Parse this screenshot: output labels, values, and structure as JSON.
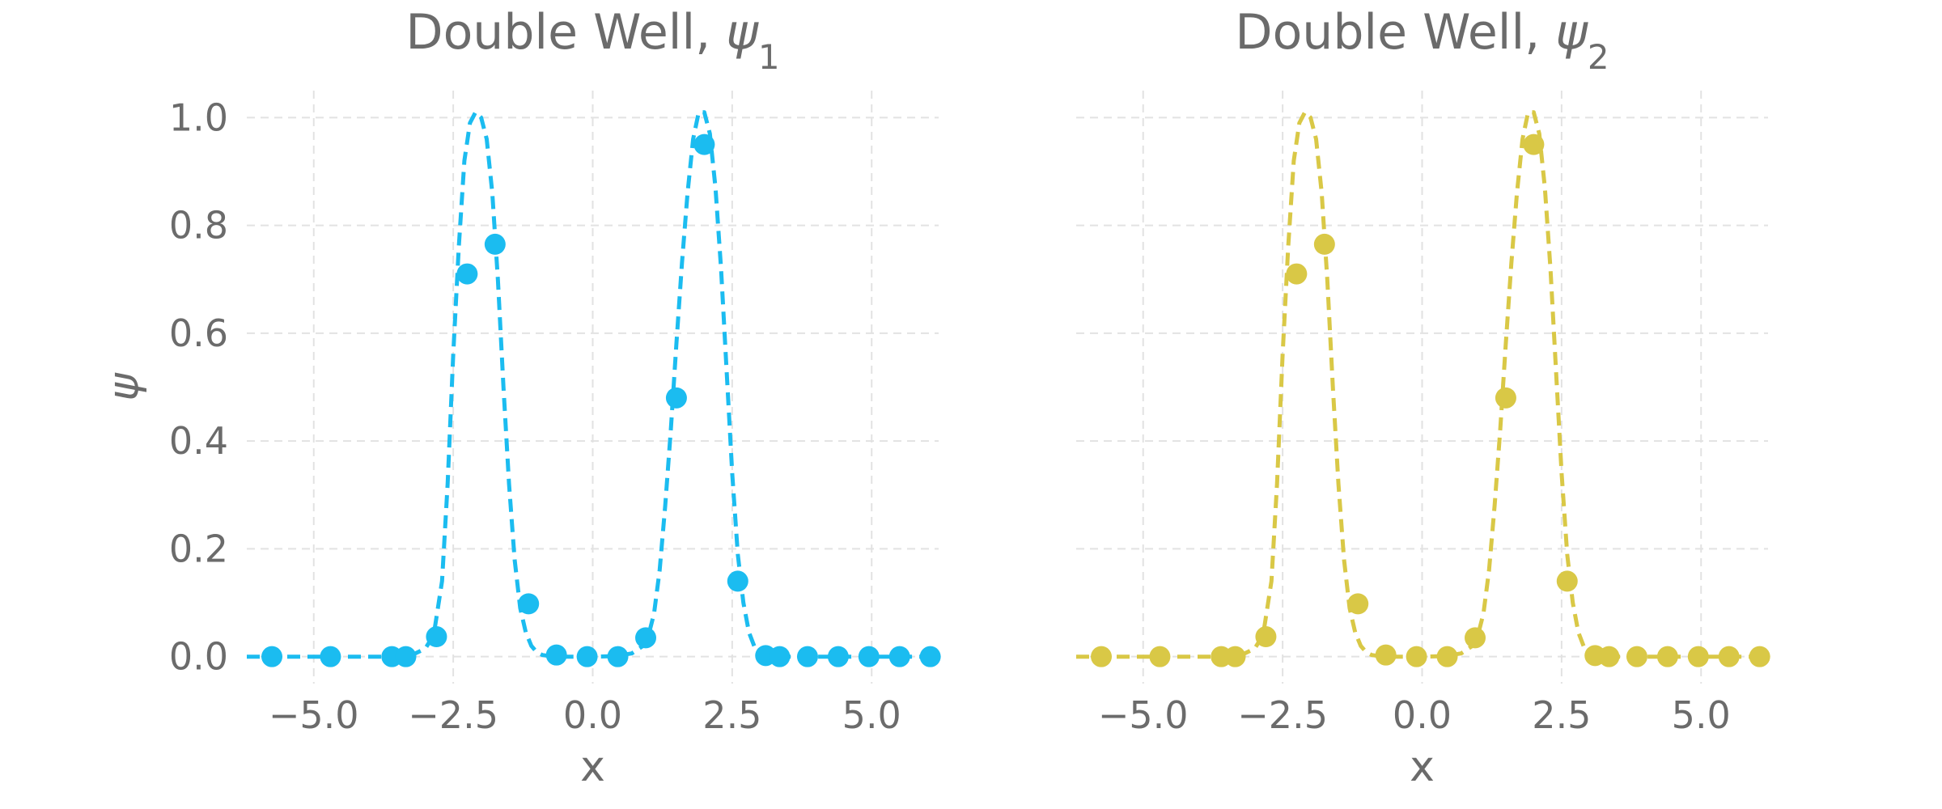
{
  "chart_data": [
    {
      "type": "line",
      "title_text": "Double Well, ",
      "title_symbol": "ψ",
      "title_subscript": "1",
      "xlabel": "x",
      "ylabel": "ψ",
      "xlim": [
        -6.2,
        6.2
      ],
      "ylim": [
        -0.05,
        1.05
      ],
      "xticks": [
        -5.0,
        -2.5,
        0.0,
        2.5,
        5.0
      ],
      "xtick_labels": [
        "−5.0",
        "−2.5",
        "0.0",
        "2.5",
        "5.0"
      ],
      "yticks": [
        0.0,
        0.2,
        0.4,
        0.6,
        0.8,
        1.0
      ],
      "ytick_labels": [
        "0.0",
        "0.2",
        "0.4",
        "0.6",
        "0.8",
        "1.0"
      ],
      "grid": true,
      "color": "#1bbcf0",
      "curve": {
        "style": "dashed",
        "x": [
          -6.2,
          -4.0,
          -3.5,
          -3.2,
          -3.0,
          -2.85,
          -2.7,
          -2.6,
          -2.5,
          -2.4,
          -2.3,
          -2.2,
          -2.1,
          -2.0,
          -1.9,
          -1.8,
          -1.7,
          -1.6,
          -1.5,
          -1.4,
          -1.3,
          -1.2,
          -1.1,
          -1.0,
          -0.9,
          -0.7,
          -0.4,
          0.0,
          0.4,
          0.7,
          0.9,
          1.0,
          1.1,
          1.2,
          1.3,
          1.4,
          1.5,
          1.6,
          1.7,
          1.8,
          1.9,
          2.0,
          2.1,
          2.2,
          2.3,
          2.4,
          2.5,
          2.6,
          2.7,
          2.8,
          2.9,
          3.0,
          3.2,
          3.5,
          4.0,
          6.2
        ],
        "y": [
          0.0,
          0.0,
          0.0,
          0.005,
          0.015,
          0.04,
          0.14,
          0.32,
          0.56,
          0.76,
          0.92,
          0.99,
          1.01,
          1.0,
          0.96,
          0.86,
          0.7,
          0.5,
          0.32,
          0.18,
          0.09,
          0.045,
          0.02,
          0.008,
          0.003,
          0.0,
          0.0,
          0.0,
          0.001,
          0.006,
          0.02,
          0.04,
          0.08,
          0.16,
          0.28,
          0.42,
          0.58,
          0.73,
          0.86,
          0.96,
          1.01,
          1.01,
          0.97,
          0.87,
          0.72,
          0.53,
          0.34,
          0.19,
          0.1,
          0.045,
          0.018,
          0.006,
          0.001,
          0.0,
          0.0,
          0.0
        ]
      },
      "points": {
        "x": [
          -5.75,
          -4.7,
          -3.6,
          -3.35,
          -2.8,
          -2.25,
          -1.75,
          -1.15,
          -0.65,
          -0.1,
          0.45,
          0.95,
          1.5,
          2.0,
          2.6,
          3.1,
          3.35,
          3.85,
          4.4,
          4.95,
          5.5,
          6.05
        ],
        "y": [
          0.0,
          0.0,
          0.0,
          0.0,
          0.037,
          0.71,
          0.765,
          0.098,
          0.003,
          0.0,
          0.0,
          0.035,
          0.48,
          0.95,
          0.14,
          0.002,
          0.0,
          0.0,
          0.0,
          0.0,
          0.0,
          0.0
        ]
      }
    },
    {
      "type": "line",
      "title_text": "Double Well, ",
      "title_symbol": "ψ",
      "title_subscript": "2",
      "xlabel": "x",
      "ylabel": "",
      "xlim": [
        -6.2,
        6.2
      ],
      "ylim": [
        -0.05,
        1.05
      ],
      "xticks": [
        -5.0,
        -2.5,
        0.0,
        2.5,
        5.0
      ],
      "xtick_labels": [
        "−5.0",
        "−2.5",
        "0.0",
        "2.5",
        "5.0"
      ],
      "yticks": [
        0.0,
        0.2,
        0.4,
        0.6,
        0.8,
        1.0
      ],
      "ytick_labels": [],
      "grid": true,
      "color": "#d9c846",
      "curve": {
        "style": "dashed",
        "x": [
          -6.2,
          -4.0,
          -3.5,
          -3.2,
          -3.0,
          -2.85,
          -2.7,
          -2.6,
          -2.5,
          -2.4,
          -2.3,
          -2.2,
          -2.1,
          -2.0,
          -1.9,
          -1.8,
          -1.7,
          -1.6,
          -1.5,
          -1.4,
          -1.3,
          -1.2,
          -1.1,
          -1.0,
          -0.9,
          -0.7,
          -0.4,
          0.0,
          0.4,
          0.7,
          0.9,
          1.0,
          1.1,
          1.2,
          1.3,
          1.4,
          1.5,
          1.6,
          1.7,
          1.8,
          1.9,
          2.0,
          2.1,
          2.2,
          2.3,
          2.4,
          2.5,
          2.6,
          2.7,
          2.8,
          2.9,
          3.0,
          3.2,
          3.5,
          4.0,
          6.2
        ],
        "y": [
          0.0,
          0.0,
          0.0,
          0.005,
          0.015,
          0.04,
          0.14,
          0.32,
          0.56,
          0.76,
          0.92,
          0.99,
          1.01,
          1.0,
          0.96,
          0.86,
          0.7,
          0.5,
          0.32,
          0.18,
          0.09,
          0.045,
          0.02,
          0.008,
          0.003,
          0.0,
          0.0,
          0.0,
          0.001,
          0.006,
          0.02,
          0.04,
          0.08,
          0.16,
          0.28,
          0.42,
          0.58,
          0.73,
          0.86,
          0.96,
          1.01,
          1.01,
          0.97,
          0.87,
          0.72,
          0.53,
          0.34,
          0.19,
          0.1,
          0.045,
          0.018,
          0.006,
          0.001,
          0.0,
          0.0,
          0.0
        ]
      },
      "points": {
        "x": [
          -5.75,
          -4.7,
          -3.6,
          -3.35,
          -2.8,
          -2.25,
          -1.75,
          -1.15,
          -0.65,
          -0.1,
          0.45,
          0.95,
          1.5,
          2.0,
          2.6,
          3.1,
          3.35,
          3.85,
          4.4,
          4.95,
          5.5,
          6.05
        ],
        "y": [
          0.0,
          0.0,
          0.0,
          0.0,
          0.037,
          0.71,
          0.765,
          0.098,
          0.003,
          0.0,
          0.0,
          0.035,
          0.48,
          0.95,
          0.14,
          0.002,
          0.0,
          0.0,
          0.0,
          0.0,
          0.0,
          0.0
        ]
      }
    }
  ]
}
